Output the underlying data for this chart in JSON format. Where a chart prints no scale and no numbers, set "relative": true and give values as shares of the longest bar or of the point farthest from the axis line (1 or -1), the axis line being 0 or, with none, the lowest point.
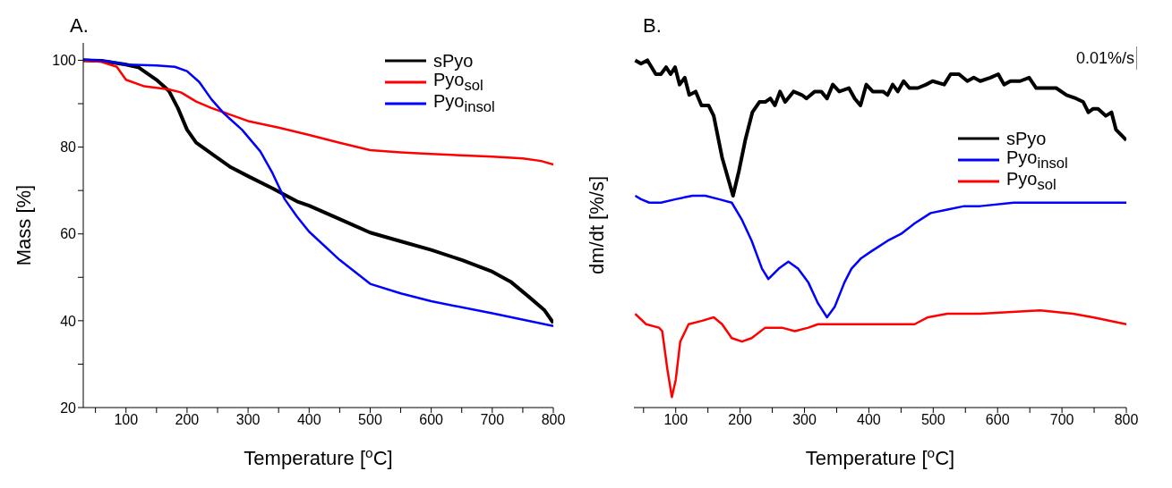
{
  "chart_data": [
    {
      "type": "line",
      "title": "A.",
      "xlabel": "Temperature [$^{o}$C]",
      "ylabel": "Mass [%]",
      "xlim": [
        30,
        800
      ],
      "ylim": [
        20,
        104
      ],
      "xticks": [
        {
          "value": 50,
          "label": null
        },
        100,
        {
          "value": 150,
          "label": null
        },
        200,
        {
          "value": 250,
          "label": null
        },
        300,
        {
          "value": 350,
          "label": null
        },
        400,
        {
          "value": 450,
          "label": null
        },
        500,
        {
          "value": 550,
          "label": null
        },
        600,
        {
          "value": 650,
          "label": null
        },
        700,
        {
          "value": 750,
          "label": null
        },
        800
      ],
      "yticks": [
        20,
        {
          "value": 30,
          "label": null
        },
        40,
        {
          "value": 50,
          "label": null
        },
        60,
        {
          "value": 70,
          "label": null
        },
        80,
        {
          "value": 90,
          "label": null
        },
        100
      ],
      "legend": "top right",
      "grid": false,
      "marker": "none",
      "line_style": "solid",
      "series": [
        {
          "name": "sPyo",
          "color": "#000000",
          "x": [
            30,
            60,
            100,
            120,
            150,
            170,
            185,
            200,
            215,
            240,
            270,
            300,
            340,
            380,
            400,
            450,
            500,
            550,
            600,
            650,
            700,
            730,
            760,
            785,
            800
          ],
          "values": [
            100,
            99.9,
            99,
            98.4,
            95.5,
            93,
            89,
            84,
            81,
            78.5,
            75.5,
            73.3,
            70.5,
            67.5,
            66.5,
            63.4,
            60.3,
            58.3,
            56.3,
            54,
            51.3,
            49,
            45.5,
            42.5,
            39.5
          ]
        },
        {
          "name": "Pyo$_{sol}$",
          "color": "#ff0000",
          "x": [
            30,
            60,
            85,
            95,
            100,
            130,
            170,
            190,
            215,
            240,
            270,
            300,
            350,
            400,
            450,
            500,
            550,
            600,
            700,
            750,
            780,
            800
          ],
          "values": [
            100,
            99.6,
            98.5,
            96.5,
            95.5,
            94,
            93.3,
            92.6,
            90.5,
            89,
            87.5,
            86,
            84.5,
            82.8,
            81,
            79.3,
            78.8,
            78.4,
            77.8,
            77.4,
            76.8,
            76
          ]
        },
        {
          "name": "Pyo$_{insol}$",
          "color": "#0000ff",
          "x": [
            30,
            70,
            100,
            150,
            180,
            200,
            220,
            240,
            260,
            290,
            320,
            340,
            360,
            380,
            400,
            450,
            500,
            550,
            600,
            700,
            800
          ],
          "values": [
            100.2,
            99.8,
            99,
            98.8,
            98.5,
            97.5,
            95,
            91,
            87.8,
            84,
            79,
            74,
            68,
            64,
            60.5,
            54,
            48.5,
            46.3,
            44.5,
            41.7,
            38.8
          ]
        }
      ]
    },
    {
      "type": "line",
      "title": "B.",
      "xlabel": "Temperature [$^{o}$C]",
      "ylabel": "dm/dt [%/s]",
      "relative": true,
      "tick_labels": "x",
      "xlim": [
        35,
        800
      ],
      "xticks": [
        {
          "value": 50,
          "label": null
        },
        100,
        {
          "value": 150,
          "label": null
        },
        200,
        {
          "value": 250,
          "label": null
        },
        300,
        {
          "value": 350,
          "label": null
        },
        400,
        {
          "value": 450,
          "label": null
        },
        500,
        {
          "value": 550,
          "label": null
        },
        600,
        {
          "value": 650,
          "label": null
        },
        700,
        {
          "value": 750,
          "label": null
        },
        800
      ],
      "legend": "right",
      "grid": false,
      "marker": "none",
      "line_style": "solid",
      "annotations": [
        "0.01%/s"
      ],
      "series": [
        {
          "name": "sPyo",
          "color": "#000000",
          "x": [
            37,
            46,
            56,
            69,
            77,
            85,
            92,
            99,
            106,
            114,
            121,
            131,
            140,
            151,
            159,
            172,
            189,
            198,
            208,
            219,
            230,
            239,
            247,
            254,
            262,
            270,
            283,
            296,
            303,
            316,
            326,
            335,
            344,
            354,
            369,
            378,
            387,
            396,
            406,
            422,
            429,
            437,
            445,
            454,
            463,
            476,
            489,
            499,
            517,
            527,
            540,
            553,
            563,
            573,
            589,
            601,
            610,
            620,
            635,
            649,
            660,
            676,
            691,
            707,
            722,
            733,
            741,
            748,
            756,
            768,
            777,
            784,
            800
          ],
          "values": [
            1.0,
            0.99,
            1.0,
            0.96,
            0.96,
            0.98,
            0.96,
            0.98,
            0.93,
            0.95,
            0.9,
            0.91,
            0.87,
            0.87,
            0.84,
            0.72,
            0.61,
            0.68,
            0.77,
            0.85,
            0.88,
            0.88,
            0.89,
            0.87,
            0.91,
            0.88,
            0.91,
            0.9,
            0.89,
            0.91,
            0.91,
            0.89,
            0.93,
            0.91,
            0.92,
            0.89,
            0.87,
            0.93,
            0.91,
            0.91,
            0.9,
            0.93,
            0.91,
            0.94,
            0.92,
            0.92,
            0.93,
            0.94,
            0.93,
            0.96,
            0.96,
            0.94,
            0.95,
            0.94,
            0.95,
            0.96,
            0.93,
            0.94,
            0.94,
            0.95,
            0.92,
            0.92,
            0.92,
            0.9,
            0.89,
            0.88,
            0.85,
            0.86,
            0.86,
            0.84,
            0.85,
            0.8,
            0.77
          ]
        },
        {
          "name": "Pyo$_{insol}$",
          "color": "#0000ff",
          "x": [
            37,
            46,
            59,
            77,
            100,
            126,
            146,
            167,
            187,
            203,
            218,
            234,
            244,
            260,
            275,
            290,
            306,
            321,
            335,
            347,
            362,
            373,
            388,
            404,
            429,
            450,
            471,
            496,
            522,
            548,
            573,
            625,
            676,
            728,
            800
          ],
          "values": [
            0.61,
            0.6,
            0.59,
            0.59,
            0.6,
            0.61,
            0.61,
            0.6,
            0.59,
            0.54,
            0.48,
            0.4,
            0.37,
            0.4,
            0.42,
            0.4,
            0.36,
            0.3,
            0.26,
            0.29,
            0.36,
            0.4,
            0.43,
            0.45,
            0.48,
            0.5,
            0.53,
            0.56,
            0.57,
            0.58,
            0.58,
            0.59,
            0.59,
            0.59,
            0.59
          ]
        },
        {
          "name": "Pyo$_{sol}$",
          "color": "#ff0000",
          "x": [
            37,
            54,
            74,
            79,
            87,
            94,
            100,
            107,
            120,
            141,
            159,
            172,
            187,
            203,
            218,
            239,
            265,
            285,
            306,
            321,
            342,
            362,
            398,
            471,
            492,
            522,
            573,
            666,
            717,
            748,
            800
          ],
          "values": [
            0.27,
            0.24,
            0.23,
            0.22,
            0.11,
            0.03,
            0.08,
            0.19,
            0.24,
            0.25,
            0.26,
            0.24,
            0.2,
            0.19,
            0.2,
            0.23,
            0.23,
            0.22,
            0.23,
            0.24,
            0.24,
            0.24,
            0.24,
            0.24,
            0.26,
            0.27,
            0.27,
            0.28,
            0.27,
            0.26,
            0.24
          ]
        }
      ]
    }
  ]
}
